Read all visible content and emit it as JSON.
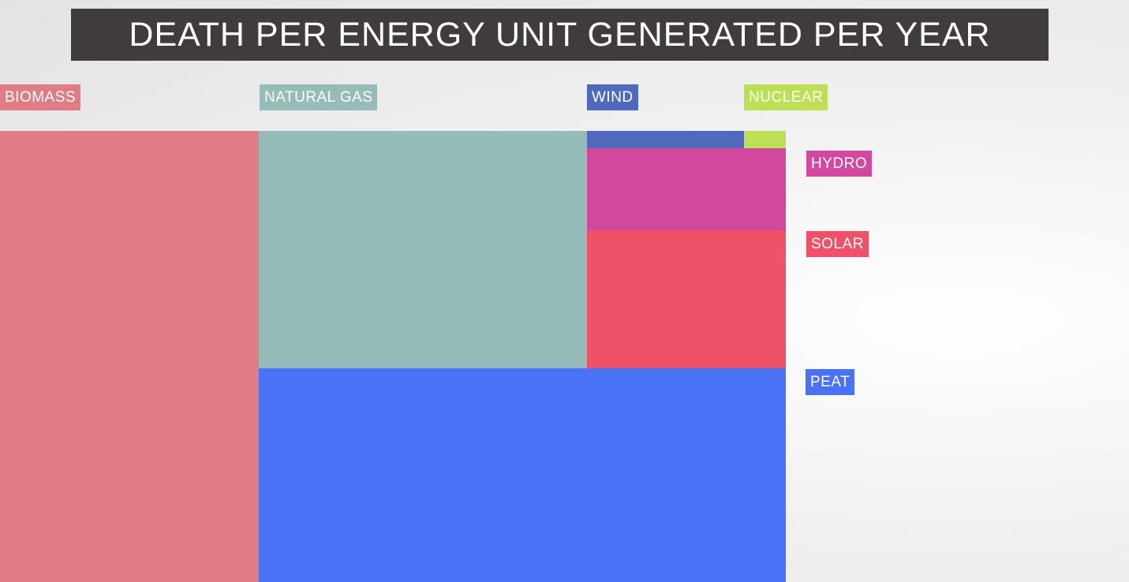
{
  "title": "DEATH PER ENERGY UNIT GENERATED PER YEAR",
  "chart_data": {
    "type": "treemap",
    "title": "DEATH PER ENERGY UNIT GENERATED PER YEAR",
    "items": [
      {
        "id": "biomass",
        "label": "BIOMASS",
        "color": "#e07c85"
      },
      {
        "id": "natural_gas",
        "label": "NATURAL GAS",
        "color": "#96bcb9"
      },
      {
        "id": "wind",
        "label": "WIND",
        "color": "#5169bd"
      },
      {
        "id": "nuclear",
        "label": "NUCLEAR",
        "color": "#bcdf55"
      },
      {
        "id": "hydro",
        "label": "HYDRO",
        "color": "#d1489e"
      },
      {
        "id": "solar",
        "label": "SOLAR",
        "color": "#ee5168"
      },
      {
        "id": "peat",
        "label": "PEAT",
        "color": "#4a72f6"
      }
    ]
  }
}
